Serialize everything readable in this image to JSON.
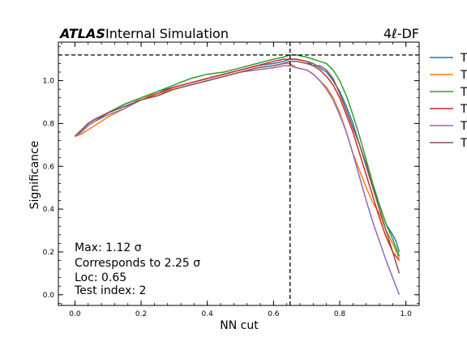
{
  "chart_data": {
    "type": "line",
    "header": {
      "atlas": "ATLAS",
      "label": "Internal Simulation",
      "channel": "4ℓ-DF"
    },
    "xlabel": "NN cut",
    "ylabel": "Significance",
    "xlim": [
      -0.05,
      1.04
    ],
    "ylim": [
      -0.05,
      1.18
    ],
    "xticks": [
      "0.0",
      "0.2",
      "0.4",
      "0.6",
      "0.8",
      "1.0"
    ],
    "yticks": [
      "0.0",
      "0.2",
      "0.4",
      "0.6",
      "0.8",
      "1.0"
    ],
    "max_line": {
      "x": 0.65,
      "y": 1.12
    },
    "annotations": [
      "Max: 1.12 σ",
      "Corresponds to 2.25 σ",
      "Loc: 0.65",
      "Test index: 2"
    ],
    "legend": {
      "placement": "outside-right",
      "labels": [
        "T",
        "T",
        "T",
        "T",
        "T",
        "T"
      ]
    },
    "series": [
      {
        "color": "#1f77b4",
        "x": [
          0.0,
          0.02,
          0.04,
          0.06,
          0.1,
          0.15,
          0.2,
          0.25,
          0.3,
          0.35,
          0.4,
          0.45,
          0.5,
          0.55,
          0.6,
          0.63,
          0.65,
          0.67,
          0.7,
          0.72,
          0.74,
          0.76,
          0.78,
          0.8,
          0.82,
          0.84,
          0.86,
          0.88,
          0.9,
          0.92,
          0.94,
          0.96,
          0.97,
          0.98
        ],
        "y": [
          0.74,
          0.76,
          0.79,
          0.81,
          0.85,
          0.89,
          0.92,
          0.95,
          0.97,
          0.99,
          1.01,
          1.03,
          1.05,
          1.07,
          1.08,
          1.09,
          1.1,
          1.1,
          1.09,
          1.08,
          1.06,
          1.04,
          1.0,
          0.95,
          0.88,
          0.8,
          0.7,
          0.6,
          0.5,
          0.42,
          0.33,
          0.28,
          0.25,
          0.2
        ]
      },
      {
        "color": "#ff7f0e",
        "x": [
          0.0,
          0.02,
          0.04,
          0.06,
          0.1,
          0.15,
          0.2,
          0.25,
          0.3,
          0.35,
          0.4,
          0.45,
          0.5,
          0.55,
          0.6,
          0.63,
          0.65,
          0.67,
          0.7,
          0.72,
          0.74,
          0.76,
          0.78,
          0.8,
          0.82,
          0.84,
          0.86,
          0.88,
          0.9,
          0.92,
          0.94,
          0.96,
          0.98
        ],
        "y": [
          0.74,
          0.75,
          0.77,
          0.79,
          0.83,
          0.87,
          0.92,
          0.94,
          0.96,
          0.98,
          1.0,
          1.02,
          1.04,
          1.06,
          1.07,
          1.08,
          1.08,
          1.06,
          1.05,
          1.03,
          1.0,
          0.97,
          0.92,
          0.85,
          0.76,
          0.66,
          0.58,
          0.5,
          0.43,
          0.38,
          0.3,
          0.24,
          0.17
        ]
      },
      {
        "color": "#2ca02c",
        "x": [
          0.0,
          0.02,
          0.04,
          0.06,
          0.1,
          0.15,
          0.2,
          0.25,
          0.3,
          0.35,
          0.4,
          0.45,
          0.5,
          0.55,
          0.6,
          0.63,
          0.65,
          0.67,
          0.7,
          0.72,
          0.74,
          0.76,
          0.78,
          0.8,
          0.82,
          0.84,
          0.86,
          0.88,
          0.9,
          0.92,
          0.94,
          0.96,
          0.98
        ],
        "y": [
          0.74,
          0.77,
          0.8,
          0.82,
          0.85,
          0.89,
          0.92,
          0.95,
          0.98,
          1.01,
          1.03,
          1.04,
          1.06,
          1.08,
          1.1,
          1.11,
          1.12,
          1.12,
          1.11,
          1.1,
          1.09,
          1.08,
          1.05,
          1.0,
          0.93,
          0.84,
          0.74,
          0.63,
          0.52,
          0.42,
          0.33,
          0.26,
          0.18
        ]
      },
      {
        "color": "#d62728",
        "x": [
          0.0,
          0.02,
          0.04,
          0.06,
          0.1,
          0.15,
          0.2,
          0.25,
          0.3,
          0.35,
          0.4,
          0.45,
          0.5,
          0.55,
          0.6,
          0.63,
          0.65,
          0.67,
          0.7,
          0.72,
          0.74,
          0.76,
          0.78,
          0.8,
          0.82,
          0.84,
          0.86,
          0.88,
          0.9,
          0.92,
          0.94,
          0.96,
          0.98
        ],
        "y": [
          0.74,
          0.77,
          0.8,
          0.82,
          0.85,
          0.88,
          0.91,
          0.94,
          0.97,
          0.99,
          1.01,
          1.03,
          1.05,
          1.07,
          1.09,
          1.1,
          1.1,
          1.1,
          1.09,
          1.07,
          1.05,
          1.02,
          0.98,
          0.92,
          0.84,
          0.76,
          0.66,
          0.56,
          0.46,
          0.36,
          0.27,
          0.2,
          0.16
        ]
      },
      {
        "color": "#9467bd",
        "x": [
          0.0,
          0.02,
          0.04,
          0.06,
          0.1,
          0.15,
          0.2,
          0.25,
          0.3,
          0.35,
          0.4,
          0.45,
          0.5,
          0.55,
          0.6,
          0.63,
          0.65,
          0.67,
          0.7,
          0.72,
          0.74,
          0.76,
          0.78,
          0.8,
          0.82,
          0.84,
          0.86,
          0.88,
          0.9,
          0.92,
          0.94,
          0.96,
          0.98
        ],
        "y": [
          0.74,
          0.76,
          0.79,
          0.81,
          0.84,
          0.87,
          0.91,
          0.93,
          0.96,
          0.98,
          1.0,
          1.02,
          1.04,
          1.05,
          1.06,
          1.07,
          1.07,
          1.06,
          1.05,
          1.03,
          1.0,
          0.96,
          0.91,
          0.84,
          0.76,
          0.66,
          0.55,
          0.44,
          0.34,
          0.25,
          0.16,
          0.08,
          0.0
        ]
      },
      {
        "color": "#8c564b",
        "x": [
          0.0,
          0.02,
          0.04,
          0.06,
          0.1,
          0.15,
          0.2,
          0.25,
          0.3,
          0.35,
          0.4,
          0.45,
          0.5,
          0.55,
          0.6,
          0.63,
          0.65,
          0.67,
          0.7,
          0.72,
          0.74,
          0.76,
          0.78,
          0.8,
          0.82,
          0.84,
          0.86,
          0.88,
          0.9,
          0.92,
          0.94,
          0.96,
          0.98
        ],
        "y": [
          0.74,
          0.77,
          0.8,
          0.82,
          0.85,
          0.88,
          0.91,
          0.93,
          0.96,
          0.98,
          1.0,
          1.02,
          1.04,
          1.06,
          1.07,
          1.08,
          1.09,
          1.09,
          1.08,
          1.07,
          1.07,
          1.05,
          1.01,
          0.94,
          0.86,
          0.78,
          0.7,
          0.61,
          0.5,
          0.4,
          0.3,
          0.2,
          0.1
        ]
      }
    ]
  }
}
